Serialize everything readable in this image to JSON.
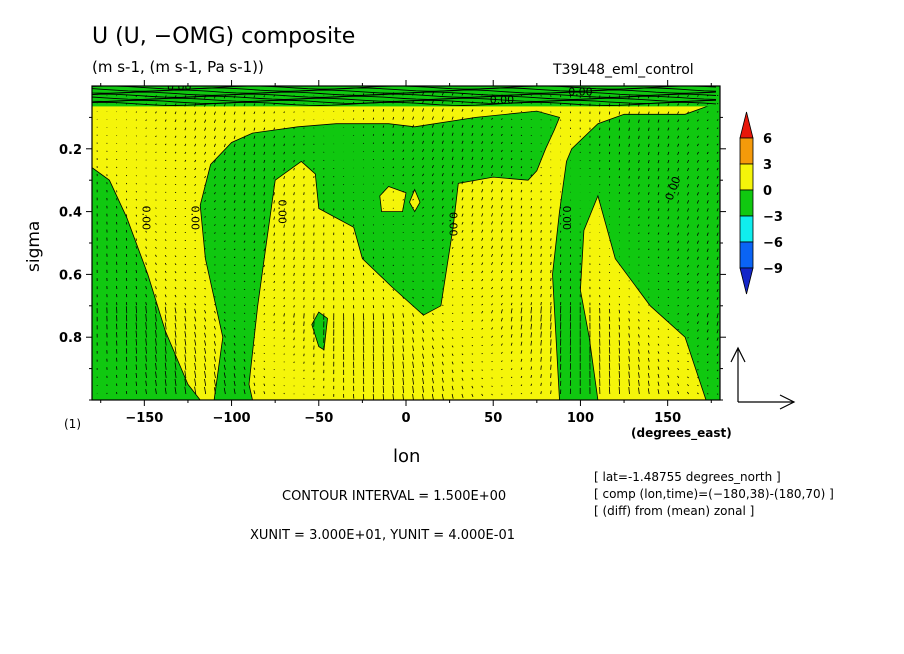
{
  "header": {
    "title": "U (U, −OMG) composite",
    "units": "(m s-1, (m s-1, Pa s-1))",
    "run_name": "T39L48_eml_control"
  },
  "footer": {
    "subplot_index": "(1)",
    "contour_interval": "CONTOUR INTERVAL = 1.500E+00",
    "vector_units": "XUNIT = 3.000E+01, YUNIT = 4.000E-01",
    "meta": [
      "[ lat=-1.48755 degrees_north ]",
      "[ comp (lon,time)=(−180,38)-(180,70) ]",
      "[ (diff) from (mean) zonal ]"
    ]
  },
  "chart_data": {
    "type": "heatmap",
    "title": "U (U, −OMG) composite",
    "xlabel": "lon",
    "xunits": "(degrees_east)",
    "ylabel": "sigma",
    "xlim": [
      -180,
      180
    ],
    "ylim": [
      1.0,
      0.0
    ],
    "x_ticks": [
      -150,
      -100,
      -50,
      0,
      50,
      100,
      150
    ],
    "x_tick_labels": [
      "−150",
      "−100",
      "−50",
      "0",
      "50",
      "100",
      "150"
    ],
    "y_ticks": [
      0.2,
      0.4,
      0.6,
      0.8
    ],
    "y_tick_labels": [
      "0.2",
      "0.4",
      "0.6",
      "0.8"
    ],
    "colorbar": {
      "levels": [
        6,
        3,
        0,
        -3,
        -6,
        -9
      ],
      "labels": [
        "6",
        "3",
        "0",
        "−3",
        "−6",
        "−9"
      ],
      "colors": [
        "#e8170a",
        "#f59a0a",
        "#f5f50a",
        "#10c810",
        "#10eded",
        "#0a64f5",
        "#1426c8"
      ]
    },
    "contour_interval": 1.5,
    "contour_labels": [
      "0.00",
      "0.00",
      "0.00",
      "0.00",
      "0.00",
      "0.00",
      "0.00",
      "0.00",
      "0.00"
    ],
    "contour_label_positions": [
      {
        "lon": -151,
        "sigma": 0.42
      },
      {
        "lon": -123,
        "sigma": 0.42
      },
      {
        "lon": -73,
        "sigma": 0.4
      },
      {
        "lon": 25,
        "sigma": 0.44
      },
      {
        "lon": 90,
        "sigma": 0.42
      },
      {
        "lon": 155,
        "sigma": 0.33
      },
      {
        "lon": -130,
        "sigma": 0.015
      },
      {
        "lon": 55,
        "sigma": 0.055
      },
      {
        "lon": 100,
        "sigma": 0.03
      }
    ],
    "regions_negative": [
      [
        [
          -180,
          0.26
        ],
        [
          -170,
          0.3
        ],
        [
          -160,
          0.42
        ],
        [
          -148,
          0.6
        ],
        [
          -138,
          0.78
        ],
        [
          -125,
          0.95
        ],
        [
          -118,
          1.0
        ],
        [
          -180,
          1.0
        ]
      ],
      [
        [
          -110,
          1.0
        ],
        [
          -105,
          0.8
        ],
        [
          -115,
          0.55
        ],
        [
          -118,
          0.38
        ],
        [
          -112,
          0.25
        ],
        [
          -100,
          0.18
        ],
        [
          -88,
          0.15
        ],
        [
          -62,
          0.13
        ],
        [
          -40,
          0.12
        ],
        [
          -20,
          0.12
        ],
        [
          -10,
          0.12
        ],
        [
          5,
          0.13
        ],
        [
          40,
          0.1
        ],
        [
          75,
          0.08
        ],
        [
          88,
          0.1
        ],
        [
          85,
          0.14
        ],
        [
          80,
          0.2
        ],
        [
          75,
          0.27
        ],
        [
          70,
          0.3
        ],
        [
          50,
          0.29
        ],
        [
          30,
          0.31
        ],
        [
          27,
          0.45
        ],
        [
          20,
          0.7
        ],
        [
          10,
          0.73
        ],
        [
          -8,
          0.64
        ],
        [
          -25,
          0.55
        ],
        [
          -30,
          0.45
        ],
        [
          -50,
          0.39
        ],
        [
          -52,
          0.28
        ],
        [
          -60,
          0.24
        ],
        [
          -75,
          0.3
        ],
        [
          -80,
          0.5
        ],
        [
          -85,
          0.7
        ],
        [
          -90,
          0.95
        ],
        [
          -88,
          1.0
        ]
      ],
      [
        [
          88,
          1.0
        ],
        [
          84,
          0.6
        ],
        [
          88,
          0.4
        ],
        [
          92,
          0.24
        ],
        [
          95,
          0.2
        ],
        [
          110,
          0.12
        ],
        [
          125,
          0.09
        ],
        [
          160,
          0.09
        ],
        [
          170,
          0.07
        ],
        [
          180,
          0.05
        ],
        [
          180,
          1.0
        ],
        [
          172,
          1.0
        ],
        [
          160,
          0.8
        ],
        [
          140,
          0.7
        ],
        [
          120,
          0.55
        ],
        [
          110,
          0.35
        ],
        [
          102,
          0.46
        ],
        [
          100,
          0.65
        ],
        [
          105,
          0.8
        ],
        [
          110,
          1.0
        ]
      ],
      [
        [
          -50,
          0.83
        ],
        [
          -54,
          0.76
        ],
        [
          -50,
          0.72
        ],
        [
          -45,
          0.74
        ],
        [
          -47,
          0.84
        ]
      ],
      [
        [
          -15,
          0.35
        ],
        [
          -10,
          0.32
        ],
        [
          0,
          0.34
        ],
        [
          -2,
          0.4
        ],
        [
          -14,
          0.4
        ]
      ],
      [
        [
          5,
          0.33
        ],
        [
          8,
          0.37
        ],
        [
          5,
          0.4
        ],
        [
          2,
          0.37
        ]
      ]
    ],
    "vector_field": {
      "x_unit": 30.0,
      "y_unit": 0.4
    }
  }
}
